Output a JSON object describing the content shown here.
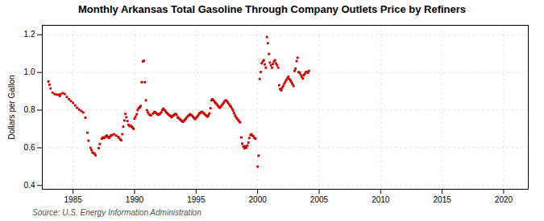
{
  "chart_data": {
    "type": "scatter",
    "title": "Monthly Arkansas Total Gasoline Through Company Outlets Price by Refiners",
    "ylabel": "Dollars per Gallon",
    "source": "Source: U.S. Energy Information Administration",
    "color": "#cc0000",
    "marker": "square",
    "grid": true,
    "xlim": [
      1982.5,
      2022
    ],
    "ylim": [
      0.38,
      1.25
    ],
    "xticks": [
      1985,
      1990,
      1995,
      2000,
      2005,
      2010,
      2015,
      2020
    ],
    "yticks": [
      0.4,
      0.6,
      0.8,
      {
        "value": 1.0,
        "label": "1.0"
      },
      1.2
    ],
    "x": [
      1983.0,
      1983.08,
      1983.17,
      1983.33,
      1983.5,
      1983.67,
      1983.83,
      1983.92,
      1984.0,
      1984.17,
      1984.33,
      1984.5,
      1984.67,
      1984.83,
      1985.0,
      1985.17,
      1985.33,
      1985.5,
      1985.67,
      1985.83,
      1986.0,
      1986.17,
      1986.25,
      1986.42,
      1986.5,
      1986.58,
      1986.67,
      1986.75,
      1986.83,
      1987.08,
      1987.17,
      1987.33,
      1987.42,
      1987.5,
      1987.58,
      1987.67,
      1987.75,
      1987.83,
      1987.92,
      1988.0,
      1988.08,
      1988.17,
      1988.33,
      1988.5,
      1988.67,
      1988.75,
      1988.83,
      1988.92,
      1989.0,
      1989.08,
      1989.17,
      1989.25,
      1989.33,
      1989.42,
      1989.5,
      1989.58,
      1989.67,
      1989.75,
      1989.83,
      1989.92,
      1990.0,
      1990.08,
      1990.17,
      1990.25,
      1990.33,
      1990.42,
      1990.5,
      1990.58,
      1990.67,
      1990.75,
      1990.83,
      1990.92,
      1991.0,
      1991.08,
      1991.17,
      1991.25,
      1991.33,
      1991.5,
      1991.58,
      1991.67,
      1991.75,
      1991.83,
      1991.92,
      1992.0,
      1992.08,
      1992.17,
      1992.25,
      1992.33,
      1992.42,
      1992.5,
      1992.58,
      1992.67,
      1992.75,
      1992.83,
      1992.92,
      1993.0,
      1993.08,
      1993.17,
      1993.25,
      1993.33,
      1993.42,
      1993.5,
      1993.58,
      1993.67,
      1993.75,
      1993.83,
      1993.92,
      1994.0,
      1994.08,
      1994.17,
      1994.25,
      1994.33,
      1994.42,
      1994.5,
      1994.58,
      1994.67,
      1994.75,
      1994.83,
      1994.92,
      1995.0,
      1995.08,
      1995.17,
      1995.25,
      1995.33,
      1995.42,
      1995.5,
      1995.58,
      1995.67,
      1995.75,
      1995.83,
      1995.92,
      1996.0,
      1996.08,
      1996.17,
      1996.25,
      1996.33,
      1996.42,
      1996.5,
      1996.58,
      1996.67,
      1996.75,
      1996.83,
      1996.92,
      1997.0,
      1997.08,
      1997.17,
      1997.25,
      1997.33,
      1997.42,
      1997.5,
      1997.58,
      1997.67,
      1997.75,
      1997.83,
      1997.92,
      1998.0,
      1998.08,
      1998.17,
      1998.25,
      1998.33,
      1998.42,
      1998.5,
      1998.58,
      1998.67,
      1998.75,
      1998.83,
      1998.92,
      1999.0,
      1999.08,
      1999.17,
      1999.25,
      1999.33,
      1999.42,
      1999.5,
      1999.58,
      1999.67,
      1999.75,
      1999.83,
      2000.0,
      2000.08,
      2000.17,
      2000.25,
      2000.33,
      2000.42,
      2000.5,
      2000.58,
      2000.67,
      2000.75,
      2000.83,
      2000.92,
      2001.0,
      2001.08,
      2001.17,
      2001.25,
      2001.33,
      2001.42,
      2001.5,
      2001.58,
      2001.67,
      2001.75,
      2001.83,
      2001.92,
      2002.0,
      2002.08,
      2002.17,
      2002.25,
      2002.33,
      2002.42,
      2002.5,
      2002.58,
      2002.67,
      2002.75,
      2002.83,
      2002.92,
      2003.0,
      2003.08,
      2003.17,
      2003.25,
      2003.33,
      2003.42,
      2003.5,
      2003.58,
      2003.67,
      2003.75,
      2003.83,
      2003.92,
      2004.0,
      2004.08,
      2004.17
    ],
    "values": [
      0.952,
      0.935,
      0.915,
      0.893,
      0.885,
      0.882,
      0.882,
      0.875,
      0.885,
      0.89,
      0.885,
      0.87,
      0.858,
      0.848,
      0.838,
      0.825,
      0.812,
      0.802,
      0.795,
      0.788,
      0.76,
      0.68,
      0.638,
      0.6,
      0.588,
      0.575,
      0.572,
      0.568,
      0.56,
      0.598,
      0.62,
      0.648,
      0.655,
      0.652,
      0.655,
      0.66,
      0.665,
      0.658,
      0.652,
      0.658,
      0.665,
      0.668,
      0.672,
      0.665,
      0.658,
      0.652,
      0.645,
      0.64,
      0.672,
      0.712,
      0.745,
      0.78,
      0.762,
      0.742,
      0.722,
      0.715,
      0.718,
      0.712,
      0.708,
      0.7,
      0.755,
      0.765,
      0.778,
      0.8,
      0.81,
      0.815,
      0.822,
      0.948,
      1.058,
      1.062,
      0.948,
      0.852,
      0.8,
      0.788,
      0.778,
      0.775,
      0.772,
      0.782,
      0.788,
      0.79,
      0.785,
      0.78,
      0.775,
      0.778,
      0.782,
      0.788,
      0.8,
      0.808,
      0.802,
      0.795,
      0.788,
      0.782,
      0.778,
      0.772,
      0.768,
      0.762,
      0.768,
      0.772,
      0.778,
      0.78,
      0.775,
      0.762,
      0.758,
      0.752,
      0.748,
      0.742,
      0.738,
      0.742,
      0.748,
      0.755,
      0.762,
      0.768,
      0.772,
      0.778,
      0.775,
      0.77,
      0.765,
      0.758,
      0.752,
      0.758,
      0.765,
      0.772,
      0.782,
      0.785,
      0.79,
      0.79,
      0.785,
      0.78,
      0.775,
      0.77,
      0.765,
      0.772,
      0.782,
      0.81,
      0.852,
      0.858,
      0.852,
      0.845,
      0.838,
      0.832,
      0.825,
      0.818,
      0.812,
      0.818,
      0.825,
      0.832,
      0.84,
      0.848,
      0.852,
      0.848,
      0.84,
      0.832,
      0.825,
      0.818,
      0.808,
      0.798,
      0.785,
      0.772,
      0.762,
      0.755,
      0.748,
      0.74,
      0.735,
      0.655,
      0.622,
      0.608,
      0.598,
      0.608,
      0.6,
      0.612,
      0.628,
      0.652,
      0.668,
      0.672,
      0.665,
      0.66,
      0.652,
      0.648,
      0.5,
      0.558,
      0.965,
      1.002,
      1.048,
      1.058,
      1.065,
      1.042,
      1.025,
      1.188,
      1.155,
      1.098,
      1.052,
      1.038,
      1.025,
      1.045,
      1.058,
      1.065,
      1.048,
      1.038,
      1.025,
      0.932,
      0.912,
      0.905,
      0.918,
      0.928,
      0.94,
      0.95,
      0.96,
      0.968,
      0.978,
      0.965,
      0.958,
      0.948,
      0.938,
      0.928,
      1.008,
      1.02,
      1.06,
      1.078,
      1.002,
      0.998,
      0.988,
      0.978,
      0.968,
      0.985,
      0.992,
      1.002,
      1.002,
      0.998,
      1.008
    ]
  }
}
